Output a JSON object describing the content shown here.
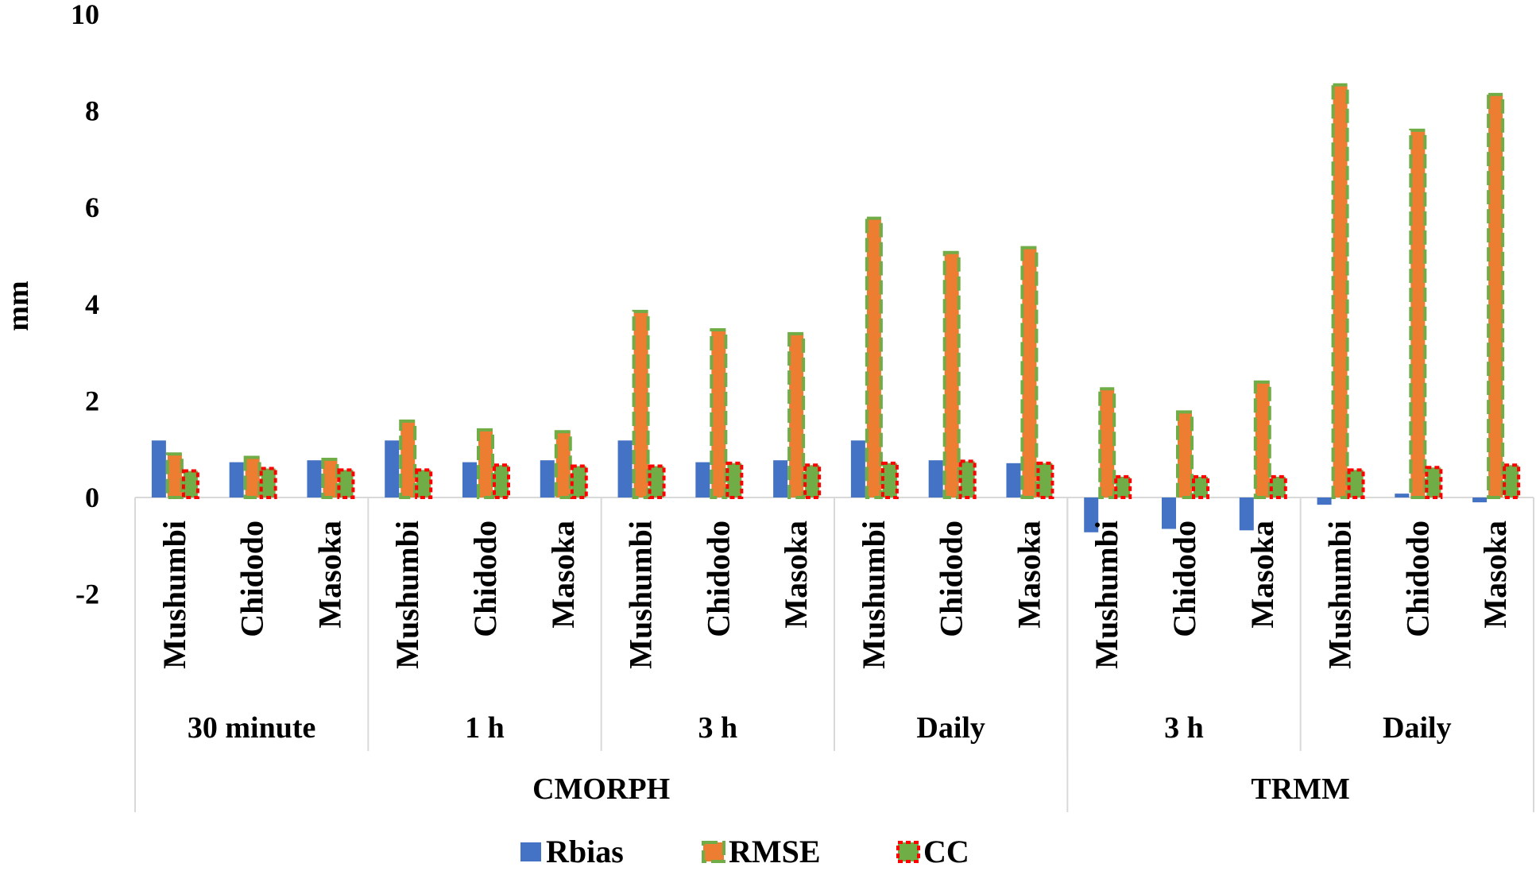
{
  "chart_data": {
    "type": "bar",
    "title": "",
    "xlabel": "",
    "ylabel": "mm",
    "ylim": [
      -2,
      10
    ],
    "yticks": [
      -2,
      0,
      2,
      4,
      6,
      8,
      10
    ],
    "grid": false,
    "legend_position": "bottom",
    "colors": {
      "Rbias": "#4472C4",
      "RMSE": "#ED7D31",
      "RMSE_border": "#70AD47",
      "CC": "#70AD47",
      "CC_border": "#FF0000"
    },
    "groups": [
      {
        "product": "CMORPH",
        "subgroups": [
          "30 minute",
          "1 h",
          "3 h",
          "Daily"
        ]
      },
      {
        "product": "TRMM",
        "subgroups": [
          "3 h",
          "Daily"
        ]
      }
    ],
    "categories": [
      {
        "product": "CMORPH",
        "resolution": "30 minute",
        "station": "Mushumbi"
      },
      {
        "product": "CMORPH",
        "resolution": "30 minute",
        "station": "Chidodo"
      },
      {
        "product": "CMORPH",
        "resolution": "30 minute",
        "station": "Masoka"
      },
      {
        "product": "CMORPH",
        "resolution": "1 h",
        "station": "Mushumbi"
      },
      {
        "product": "CMORPH",
        "resolution": "1 h",
        "station": "Chidodo"
      },
      {
        "product": "CMORPH",
        "resolution": "1 h",
        "station": "Masoka"
      },
      {
        "product": "CMORPH",
        "resolution": "3 h",
        "station": "Mushumbi"
      },
      {
        "product": "CMORPH",
        "resolution": "3 h",
        "station": "Chidodo"
      },
      {
        "product": "CMORPH",
        "resolution": "3 h",
        "station": "Masoka"
      },
      {
        "product": "CMORPH",
        "resolution": "Daily",
        "station": "Mushumbi"
      },
      {
        "product": "CMORPH",
        "resolution": "Daily",
        "station": "Chidodo"
      },
      {
        "product": "CMORPH",
        "resolution": "Daily",
        "station": "Masoka"
      },
      {
        "product": "TRMM",
        "resolution": "3 h",
        "station": "Mushumbi"
      },
      {
        "product": "TRMM",
        "resolution": "3 h",
        "station": "Chidodo"
      },
      {
        "product": "TRMM",
        "resolution": "3 h",
        "station": "Masoka"
      },
      {
        "product": "TRMM",
        "resolution": "Daily",
        "station": "Mushumbi"
      },
      {
        "product": "TRMM",
        "resolution": "Daily",
        "station": "Chidodo"
      },
      {
        "product": "TRMM",
        "resolution": "Daily",
        "station": "Masoka"
      }
    ],
    "series": [
      {
        "name": "Rbias",
        "values": [
          1.18,
          0.73,
          0.77,
          1.18,
          0.73,
          0.77,
          1.18,
          0.73,
          0.77,
          1.18,
          0.77,
          0.71,
          -0.72,
          -0.65,
          -0.68,
          -0.15,
          0.08,
          -0.1
        ]
      },
      {
        "name": "RMSE",
        "values": [
          0.9,
          0.83,
          0.79,
          1.58,
          1.4,
          1.36,
          3.85,
          3.47,
          3.39,
          5.78,
          5.07,
          5.17,
          2.25,
          1.77,
          2.39,
          8.54,
          7.6,
          8.34
        ]
      },
      {
        "name": "CC",
        "values": [
          0.55,
          0.6,
          0.57,
          0.57,
          0.67,
          0.65,
          0.65,
          0.71,
          0.67,
          0.71,
          0.75,
          0.71,
          0.43,
          0.43,
          0.43,
          0.57,
          0.62,
          0.67
        ]
      }
    ]
  }
}
